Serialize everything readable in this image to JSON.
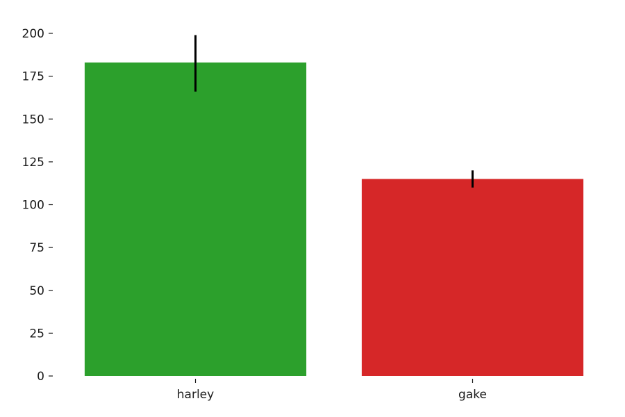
{
  "chart_data": {
    "type": "bar",
    "title": "",
    "xlabel": "",
    "ylabel": "",
    "categories": [
      "harley",
      "gake"
    ],
    "values": [
      183,
      115
    ],
    "errors": [
      {
        "low": 166,
        "high": 199
      },
      {
        "low": 110,
        "high": 120
      }
    ],
    "colors": [
      "#2ca02c",
      "#d62728"
    ],
    "ylim": [
      0,
      200
    ],
    "yticks": [
      0,
      25,
      50,
      75,
      100,
      125,
      150,
      175,
      200
    ],
    "grid": false,
    "legend": "none"
  }
}
